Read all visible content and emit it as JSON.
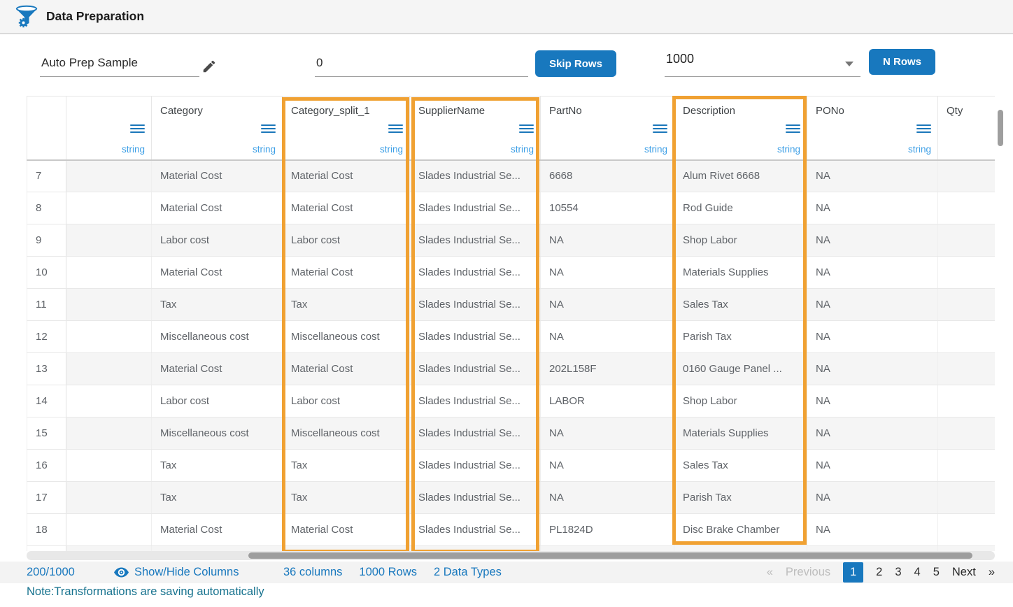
{
  "app": {
    "title": "Data Preparation"
  },
  "toolbar": {
    "dataset_name": "Auto Prep Sample",
    "skip_rows_value": "0",
    "skip_rows_button": "Skip Rows",
    "n_rows_value": "1000",
    "n_rows_button": "N Rows"
  },
  "table": {
    "columns": [
      {
        "label": "",
        "type": ""
      },
      {
        "label": "",
        "type": "string"
      },
      {
        "label": "Category",
        "type": "string"
      },
      {
        "label": "Category_split_1",
        "type": "string",
        "highlighted": true
      },
      {
        "label": "SupplierName",
        "type": "string",
        "highlighted": true
      },
      {
        "label": "PartNo",
        "type": "string"
      },
      {
        "label": "Description",
        "type": "string",
        "highlighted": true
      },
      {
        "label": "PONo",
        "type": "string"
      },
      {
        "label": "Qty",
        "type": ""
      }
    ],
    "rows": [
      {
        "num": "7",
        "cells": [
          "",
          "Material Cost",
          "Material Cost",
          "Slades Industrial Se...",
          "6668",
          "Alum Rivet 6668",
          "NA",
          ""
        ]
      },
      {
        "num": "8",
        "cells": [
          "",
          "Material Cost",
          "Material Cost",
          "Slades Industrial Se...",
          "10554",
          "Rod Guide",
          "NA",
          ""
        ]
      },
      {
        "num": "9",
        "cells": [
          "",
          "Labor cost",
          "Labor cost",
          "Slades Industrial Se...",
          "NA",
          "Shop Labor",
          "NA",
          ""
        ]
      },
      {
        "num": "10",
        "cells": [
          "",
          "Material Cost",
          "Material Cost",
          "Slades Industrial Se...",
          "NA",
          "Materials Supplies",
          "NA",
          ""
        ]
      },
      {
        "num": "11",
        "cells": [
          "",
          "Tax",
          "Tax",
          "Slades Industrial Se...",
          "NA",
          "Sales Tax",
          "NA",
          ""
        ]
      },
      {
        "num": "12",
        "cells": [
          "",
          "Miscellaneous cost",
          "Miscellaneous cost",
          "Slades Industrial Se...",
          "NA",
          "Parish Tax",
          "NA",
          ""
        ]
      },
      {
        "num": "13",
        "cells": [
          "",
          "Material Cost",
          "Material Cost",
          "Slades Industrial Se...",
          "202L158F",
          "0160 Gauge Panel ...",
          "NA",
          ""
        ]
      },
      {
        "num": "14",
        "cells": [
          "",
          "Labor cost",
          "Labor cost",
          "Slades Industrial Se...",
          "LABOR",
          "Shop Labor",
          "NA",
          ""
        ]
      },
      {
        "num": "15",
        "cells": [
          "",
          "Miscellaneous cost",
          "Miscellaneous cost",
          "Slades Industrial Se...",
          "NA",
          "Materials Supplies",
          "NA",
          ""
        ]
      },
      {
        "num": "16",
        "cells": [
          "",
          "Tax",
          "Tax",
          "Slades Industrial Se...",
          "NA",
          "Sales Tax",
          "NA",
          ""
        ]
      },
      {
        "num": "17",
        "cells": [
          "",
          "Tax",
          "Tax",
          "Slades Industrial Se...",
          "NA",
          "Parish Tax",
          "NA",
          ""
        ]
      },
      {
        "num": "18",
        "cells": [
          "",
          "Material Cost",
          "Material Cost",
          "Slades Industrial Se...",
          "PL1824D",
          "Disc Brake Chamber",
          "NA",
          ""
        ]
      }
    ]
  },
  "footer": {
    "row_indicator": "200/1000",
    "show_hide_label": "Show/Hide Columns",
    "columns_info": "36 columns",
    "rows_info": "1000 Rows",
    "types_info": "2 Data Types",
    "pagination": {
      "prev_symbol": "«",
      "prev_label": "Previous",
      "pages": [
        "1",
        "2",
        "3",
        "4",
        "5"
      ],
      "active_page": "1",
      "next_label": "Next",
      "next_symbol": "»"
    }
  },
  "note": "Note:Transformations are saving automatically",
  "colors": {
    "accent_blue": "#1878be",
    "type_label_blue": "#3d9fe6",
    "highlight_orange": "#f0a132",
    "note_teal": "#16728e"
  }
}
